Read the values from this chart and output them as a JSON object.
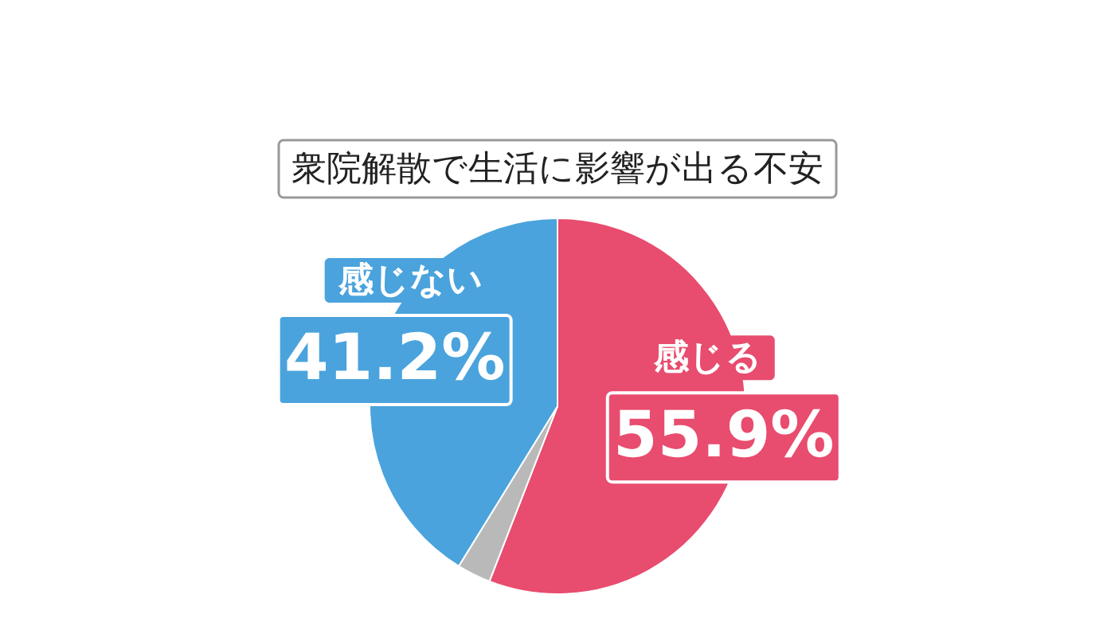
{
  "chart_data": {
    "type": "pie",
    "title": "衆院解散で生活に影響が出る不安",
    "categories": [
      "感じる",
      null,
      "感じない"
    ],
    "values": [
      55.9,
      2.9,
      41.2
    ],
    "colors": [
      "#e84c6e",
      "#b9b9b9",
      "#4aa3dc"
    ],
    "value_labels": [
      "55.9%",
      null,
      "41.2%"
    ]
  }
}
